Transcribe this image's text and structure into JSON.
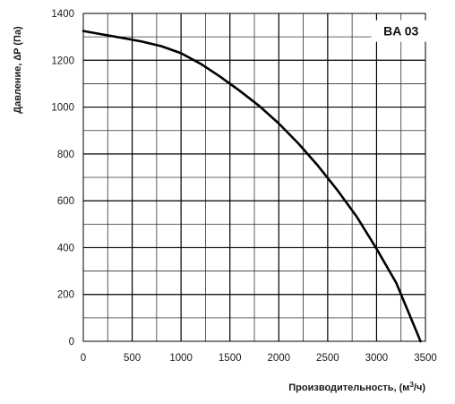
{
  "chart_data": {
    "type": "line",
    "title": "",
    "label": "BA 03",
    "xlabel": "Производительность, (м³/ч)",
    "ylabel": "Давление, ∆P (Па)",
    "xlim": [
      0,
      3500
    ],
    "ylim": [
      0,
      1400
    ],
    "x_ticks": [
      "0",
      "500",
      "1000",
      "1500",
      "2000",
      "2500",
      "3000",
      "3500"
    ],
    "y_ticks": [
      "0",
      "200",
      "400",
      "600",
      "800",
      "1000",
      "1200",
      "1400"
    ],
    "grid": true,
    "series": [
      {
        "x": [
          0,
          200,
          400,
          600,
          800,
          1000,
          1200,
          1400,
          1600,
          1800,
          2000,
          2200,
          2400,
          2600,
          2800,
          3000,
          3200,
          3300,
          3400,
          3450
        ],
        "y": [
          1325,
          1310,
          1295,
          1280,
          1260,
          1230,
          1185,
          1130,
          1070,
          1005,
          930,
          845,
          750,
          645,
          530,
          395,
          250,
          150,
          50,
          0
        ]
      }
    ]
  }
}
